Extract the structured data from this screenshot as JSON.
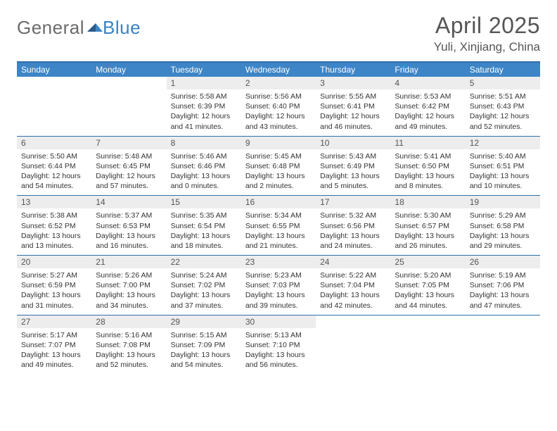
{
  "logo": {
    "text_gray": "General",
    "text_blue": "Blue"
  },
  "title": "April 2025",
  "location": "Yuli, Xinjiang, China",
  "colors": {
    "header_bg": "#3d85c6",
    "header_text": "#ffffff",
    "row_border": "#2f6ea8",
    "daynum_bg": "#ededed",
    "logo_gray": "#6b6b6b",
    "logo_blue": "#3b82c4",
    "body_text": "#333333",
    "title_text": "#555555",
    "page_bg": "#ffffff"
  },
  "headers": [
    "Sunday",
    "Monday",
    "Tuesday",
    "Wednesday",
    "Thursday",
    "Friday",
    "Saturday"
  ],
  "weeks": [
    [
      {
        "empty": true
      },
      {
        "empty": true
      },
      {
        "n": "1",
        "sr": "Sunrise: 5:58 AM",
        "ss": "Sunset: 6:39 PM",
        "dl": "Daylight: 12 hours and 41 minutes."
      },
      {
        "n": "2",
        "sr": "Sunrise: 5:56 AM",
        "ss": "Sunset: 6:40 PM",
        "dl": "Daylight: 12 hours and 43 minutes."
      },
      {
        "n": "3",
        "sr": "Sunrise: 5:55 AM",
        "ss": "Sunset: 6:41 PM",
        "dl": "Daylight: 12 hours and 46 minutes."
      },
      {
        "n": "4",
        "sr": "Sunrise: 5:53 AM",
        "ss": "Sunset: 6:42 PM",
        "dl": "Daylight: 12 hours and 49 minutes."
      },
      {
        "n": "5",
        "sr": "Sunrise: 5:51 AM",
        "ss": "Sunset: 6:43 PM",
        "dl": "Daylight: 12 hours and 52 minutes."
      }
    ],
    [
      {
        "n": "6",
        "sr": "Sunrise: 5:50 AM",
        "ss": "Sunset: 6:44 PM",
        "dl": "Daylight: 12 hours and 54 minutes."
      },
      {
        "n": "7",
        "sr": "Sunrise: 5:48 AM",
        "ss": "Sunset: 6:45 PM",
        "dl": "Daylight: 12 hours and 57 minutes."
      },
      {
        "n": "8",
        "sr": "Sunrise: 5:46 AM",
        "ss": "Sunset: 6:46 PM",
        "dl": "Daylight: 13 hours and 0 minutes."
      },
      {
        "n": "9",
        "sr": "Sunrise: 5:45 AM",
        "ss": "Sunset: 6:48 PM",
        "dl": "Daylight: 13 hours and 2 minutes."
      },
      {
        "n": "10",
        "sr": "Sunrise: 5:43 AM",
        "ss": "Sunset: 6:49 PM",
        "dl": "Daylight: 13 hours and 5 minutes."
      },
      {
        "n": "11",
        "sr": "Sunrise: 5:41 AM",
        "ss": "Sunset: 6:50 PM",
        "dl": "Daylight: 13 hours and 8 minutes."
      },
      {
        "n": "12",
        "sr": "Sunrise: 5:40 AM",
        "ss": "Sunset: 6:51 PM",
        "dl": "Daylight: 13 hours and 10 minutes."
      }
    ],
    [
      {
        "n": "13",
        "sr": "Sunrise: 5:38 AM",
        "ss": "Sunset: 6:52 PM",
        "dl": "Daylight: 13 hours and 13 minutes."
      },
      {
        "n": "14",
        "sr": "Sunrise: 5:37 AM",
        "ss": "Sunset: 6:53 PM",
        "dl": "Daylight: 13 hours and 16 minutes."
      },
      {
        "n": "15",
        "sr": "Sunrise: 5:35 AM",
        "ss": "Sunset: 6:54 PM",
        "dl": "Daylight: 13 hours and 18 minutes."
      },
      {
        "n": "16",
        "sr": "Sunrise: 5:34 AM",
        "ss": "Sunset: 6:55 PM",
        "dl": "Daylight: 13 hours and 21 minutes."
      },
      {
        "n": "17",
        "sr": "Sunrise: 5:32 AM",
        "ss": "Sunset: 6:56 PM",
        "dl": "Daylight: 13 hours and 24 minutes."
      },
      {
        "n": "18",
        "sr": "Sunrise: 5:30 AM",
        "ss": "Sunset: 6:57 PM",
        "dl": "Daylight: 13 hours and 26 minutes."
      },
      {
        "n": "19",
        "sr": "Sunrise: 5:29 AM",
        "ss": "Sunset: 6:58 PM",
        "dl": "Daylight: 13 hours and 29 minutes."
      }
    ],
    [
      {
        "n": "20",
        "sr": "Sunrise: 5:27 AM",
        "ss": "Sunset: 6:59 PM",
        "dl": "Daylight: 13 hours and 31 minutes."
      },
      {
        "n": "21",
        "sr": "Sunrise: 5:26 AM",
        "ss": "Sunset: 7:00 PM",
        "dl": "Daylight: 13 hours and 34 minutes."
      },
      {
        "n": "22",
        "sr": "Sunrise: 5:24 AM",
        "ss": "Sunset: 7:02 PM",
        "dl": "Daylight: 13 hours and 37 minutes."
      },
      {
        "n": "23",
        "sr": "Sunrise: 5:23 AM",
        "ss": "Sunset: 7:03 PM",
        "dl": "Daylight: 13 hours and 39 minutes."
      },
      {
        "n": "24",
        "sr": "Sunrise: 5:22 AM",
        "ss": "Sunset: 7:04 PM",
        "dl": "Daylight: 13 hours and 42 minutes."
      },
      {
        "n": "25",
        "sr": "Sunrise: 5:20 AM",
        "ss": "Sunset: 7:05 PM",
        "dl": "Daylight: 13 hours and 44 minutes."
      },
      {
        "n": "26",
        "sr": "Sunrise: 5:19 AM",
        "ss": "Sunset: 7:06 PM",
        "dl": "Daylight: 13 hours and 47 minutes."
      }
    ],
    [
      {
        "n": "27",
        "sr": "Sunrise: 5:17 AM",
        "ss": "Sunset: 7:07 PM",
        "dl": "Daylight: 13 hours and 49 minutes."
      },
      {
        "n": "28",
        "sr": "Sunrise: 5:16 AM",
        "ss": "Sunset: 7:08 PM",
        "dl": "Daylight: 13 hours and 52 minutes."
      },
      {
        "n": "29",
        "sr": "Sunrise: 5:15 AM",
        "ss": "Sunset: 7:09 PM",
        "dl": "Daylight: 13 hours and 54 minutes."
      },
      {
        "n": "30",
        "sr": "Sunrise: 5:13 AM",
        "ss": "Sunset: 7:10 PM",
        "dl": "Daylight: 13 hours and 56 minutes."
      },
      {
        "empty": true
      },
      {
        "empty": true
      },
      {
        "empty": true
      }
    ]
  ]
}
